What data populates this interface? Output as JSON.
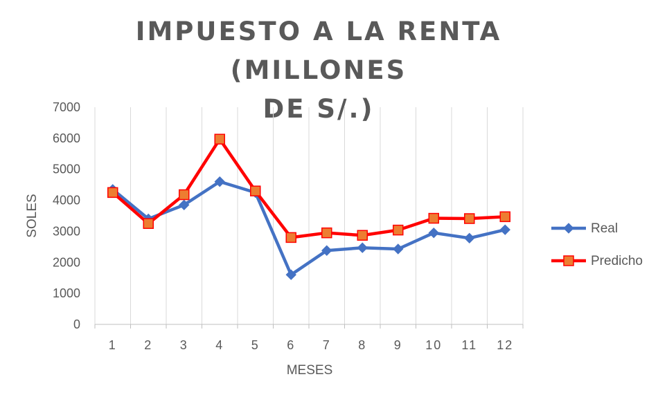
{
  "chart_data": {
    "type": "line",
    "title": "IMPUESTO A LA RENTA (MILLONES DE S/.)",
    "xlabel": "MESES",
    "ylabel": "SOLES",
    "categories": [
      "1",
      "2",
      "3",
      "4",
      "5",
      "6",
      "7",
      "8",
      "9",
      "10",
      "11",
      "12"
    ],
    "ylim": [
      0,
      7000
    ],
    "yticks": [
      0,
      1000,
      2000,
      3000,
      4000,
      5000,
      6000,
      7000
    ],
    "grid": "vertical",
    "legend_position": "right",
    "series": [
      {
        "name": "Real",
        "color": "#4472C4",
        "marker": "diamond",
        "values": [
          4350,
          3400,
          3850,
          4600,
          4250,
          1600,
          2380,
          2470,
          2430,
          2950,
          2780,
          3050
        ]
      },
      {
        "name": "Predicho",
        "color": "#FF0000",
        "marker_fill": "#ED7D31",
        "marker": "square",
        "values": [
          4250,
          3250,
          4180,
          5970,
          4300,
          2800,
          2950,
          2870,
          3040,
          3420,
          3410,
          3470
        ]
      }
    ]
  }
}
